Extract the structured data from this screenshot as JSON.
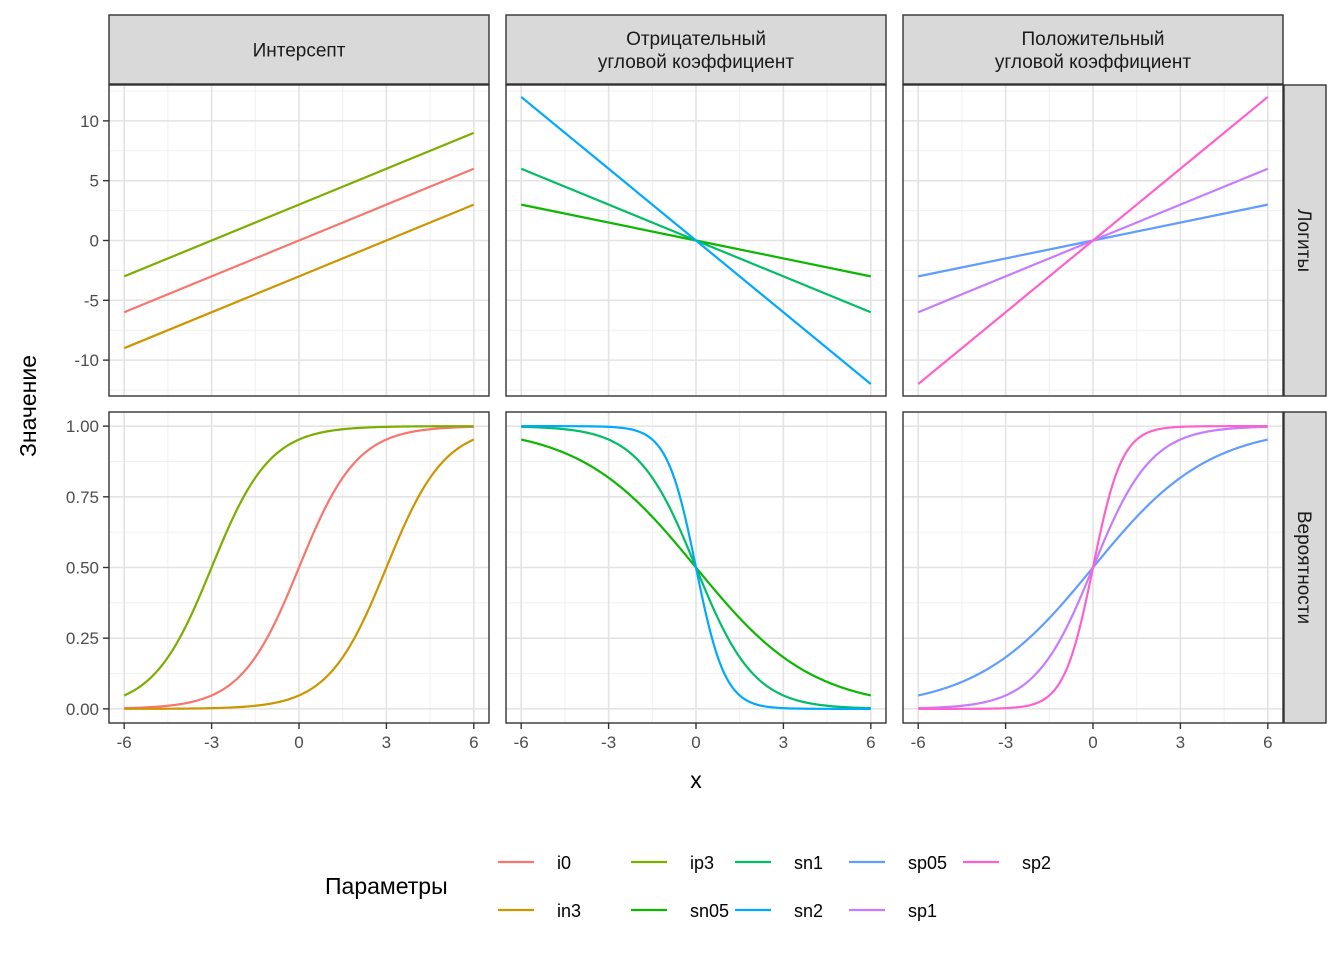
{
  "chart_data": {
    "type": "line",
    "x_range": [
      -6,
      6
    ],
    "x_ticks": [
      -6,
      -3,
      0,
      3,
      6
    ],
    "x_tick_labels": [
      "-6",
      "-3",
      "0",
      "3",
      "6"
    ],
    "xlabel": "x",
    "ylabel": "Значение",
    "grid": true,
    "legend_position": "bottom",
    "legend_title": "Параметры",
    "columns": [
      {
        "key": "intercept",
        "label": "Интерсепт",
        "series": [
          "i0",
          "in3",
          "ip3"
        ]
      },
      {
        "key": "neg",
        "label": "Отрицательный\nугловой коэффициент",
        "series": [
          "sn05",
          "sn1",
          "sn2"
        ]
      },
      {
        "key": "pos",
        "label": "Положительный\nугловой коэффициент",
        "series": [
          "sp05",
          "sp1",
          "sp2"
        ]
      }
    ],
    "rows": [
      {
        "key": "logit",
        "label": "Логиты",
        "ylim": [
          -13,
          13
        ],
        "y_ticks": [
          -10,
          -5,
          0,
          5,
          10
        ],
        "y_tick_labels": [
          "-10",
          "-5",
          "0",
          "5",
          "10"
        ]
      },
      {
        "key": "prob",
        "label": "Вероятности",
        "ylim": [
          -0.05,
          1.05
        ],
        "y_ticks": [
          0,
          0.25,
          0.5,
          0.75,
          1
        ],
        "y_tick_labels": [
          "0.00",
          "0.25",
          "0.50",
          "0.75",
          "1.00"
        ]
      }
    ],
    "series": [
      {
        "name": "i0",
        "intercept": 0,
        "slope": 1,
        "color": "#F8766D"
      },
      {
        "name": "in3",
        "intercept": -3,
        "slope": 1,
        "color": "#CD9600"
      },
      {
        "name": "ip3",
        "intercept": 3,
        "slope": 1,
        "color": "#7CAE00"
      },
      {
        "name": "sn05",
        "intercept": 0,
        "slope": -0.5,
        "color": "#0CB702"
      },
      {
        "name": "sn1",
        "intercept": 0,
        "slope": -1,
        "color": "#00BE67"
      },
      {
        "name": "sn2",
        "intercept": 0,
        "slope": -2,
        "color": "#00A9FF"
      },
      {
        "name": "sp05",
        "intercept": 0,
        "slope": 0.5,
        "color": "#619CFF"
      },
      {
        "name": "sp1",
        "intercept": 0,
        "slope": 1,
        "color": "#C77CFF"
      },
      {
        "name": "sp2",
        "intercept": 0,
        "slope": 2,
        "color": "#FF61CC"
      }
    ],
    "legend_order": [
      "i0",
      "in3",
      "ip3",
      "sn05",
      "sn1",
      "sn2",
      "sp05",
      "sp1",
      "sp2"
    ]
  }
}
